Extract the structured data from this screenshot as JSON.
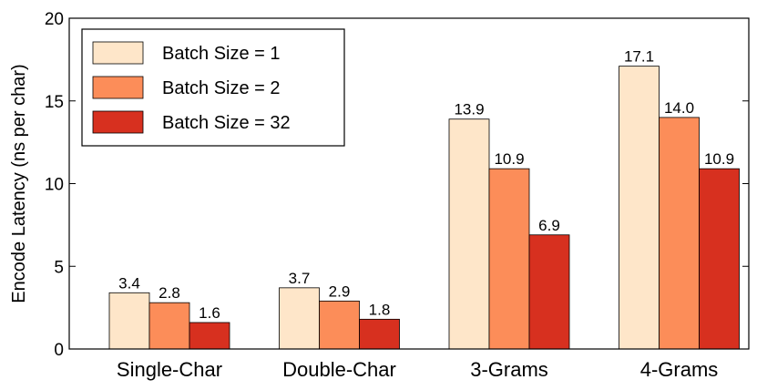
{
  "chart_data": {
    "type": "bar",
    "title": "",
    "xlabel": "",
    "ylabel": "Encode Latency (ns per char)",
    "ylim": [
      0,
      20
    ],
    "yticks": [
      0,
      5,
      10,
      15,
      20
    ],
    "grid": false,
    "legend_position": "top-left",
    "categories": [
      "Single-Char",
      "Double-Char",
      "3-Grams",
      "4-Grams"
    ],
    "series": [
      {
        "name": "Batch Size = 1",
        "color": "#fee6c9",
        "values": [
          3.4,
          3.7,
          13.9,
          17.1
        ],
        "labels": [
          "3.4",
          "3.7",
          "13.9",
          "17.1"
        ]
      },
      {
        "name": "Batch Size = 2",
        "color": "#fc8d59",
        "values": [
          2.8,
          2.9,
          10.9,
          14.0
        ],
        "labels": [
          "2.8",
          "2.9",
          "10.9",
          "14.0"
        ]
      },
      {
        "name": "Batch Size = 32",
        "color": "#d7301f",
        "values": [
          1.6,
          1.8,
          6.9,
          10.9
        ],
        "labels": [
          "1.6",
          "1.8",
          "6.9",
          "10.9"
        ]
      }
    ]
  }
}
